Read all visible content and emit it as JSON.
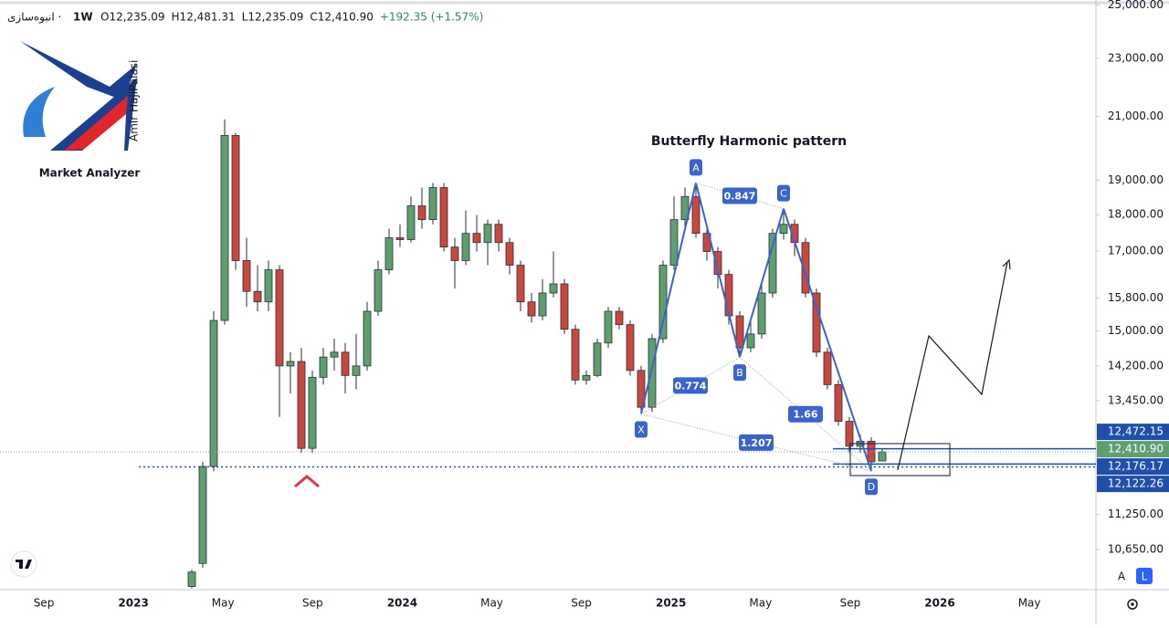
{
  "header": {
    "symbol": "انبوه‌سازی ·",
    "interval": "1W",
    "ohlc": [
      "O12,235.09",
      "H12,481.31",
      "L12,235.09",
      "C12,410.90"
    ],
    "change": "+192.35 (+1.57%)"
  },
  "logo": {
    "name": "Market Analyzer",
    "author": "Amir HajiPalasi"
  },
  "controls": [
    "A",
    "L"
  ],
  "chart_data": {
    "type": "candlestick",
    "title": "Butterfly Harmonic pattern",
    "log_scale": true,
    "grid": false,
    "ylim": [
      10000,
      25200
    ],
    "yticks": [
      {
        "value": 25000,
        "label": "25,000.00"
      },
      {
        "value": 23000,
        "label": "23,000.00"
      },
      {
        "value": 21000,
        "label": "21,000.00"
      },
      {
        "value": 19000,
        "label": "19,000.00"
      },
      {
        "value": 18000,
        "label": "18,000.00"
      },
      {
        "value": 17000,
        "label": "17,000.00"
      },
      {
        "value": 15800,
        "label": "15,800.00"
      },
      {
        "value": 15000,
        "label": "15,000.00"
      },
      {
        "value": 14200,
        "label": "14,200.00"
      },
      {
        "value": 13450,
        "label": "13,450.00"
      },
      {
        "value": 11250,
        "label": "11,250.00"
      },
      {
        "value": 10650,
        "label": "10,650.00"
      }
    ],
    "x_labels": [
      "Sep",
      "2023",
      "May",
      "Sep",
      "2024",
      "May",
      "Sep",
      "2025",
      "May",
      "Sep",
      "2026",
      "May"
    ],
    "up_color": "#5f9e6e",
    "down_color": "#c8473f",
    "open": [
      10050,
      10420,
      12130,
      15250,
      20380,
      16750,
      15960,
      15700,
      16510,
      14200,
      14300,
      12480,
      13950,
      14400,
      14510,
      13990,
      14200,
      15470,
      16510,
      17360,
      17310,
      18250,
      17860,
      18780,
      17110,
      16750,
      17480,
      17230,
      17730,
      17230,
      16630,
      15700,
      15360,
      15920,
      16150,
      15040,
      13890,
      13990,
      14720,
      15470,
      15150,
      14100,
      13310,
      14820,
      16630,
      17860,
      18520,
      17480,
      16990,
      16390,
      15360,
      14610,
      14930,
      15920,
      17480,
      17730,
      17230,
      15920,
      14510,
      13790,
      13020,
      12520,
      12620,
      12235.09
    ],
    "high": [
      10320,
      12220,
      15470,
      20900,
      20460,
      17360,
      16630,
      16750,
      16630,
      14510,
      14610,
      14100,
      14610,
      14820,
      14720,
      14930,
      15700,
      16750,
      17610,
      17730,
      18520,
      18780,
      18920,
      18920,
      17360,
      18120,
      17990,
      17860,
      17860,
      17360,
      16750,
      15920,
      16270,
      16990,
      16270,
      15150,
      14100,
      14820,
      15580,
      15580,
      15250,
      14200,
      14930,
      16750,
      18520,
      18780,
      18920,
      17730,
      17110,
      16510,
      15470,
      15250,
      16150,
      17610,
      18170,
      17860,
      17360,
      16030,
      14610,
      13890,
      13110,
      12750,
      12700,
      12481.31
    ],
    "low": [
      10020,
      10350,
      12040,
      15150,
      16510,
      15580,
      15470,
      15470,
      13110,
      13600,
      12390,
      12390,
      13790,
      14100,
      13600,
      13690,
      14100,
      15360,
      16390,
      17110,
      17230,
      17610,
      17730,
      16990,
      16030,
      16630,
      16990,
      16630,
      16990,
      16390,
      15470,
      15200,
      15250,
      15810,
      14930,
      13790,
      13790,
      13950,
      14610,
      15040,
      13990,
      13170,
      13210,
      14720,
      16510,
      17660,
      17360,
      16750,
      16030,
      15150,
      14400,
      14510,
      14820,
      15810,
      17310,
      16870,
      15810,
      14400,
      13690,
      12930,
      12390,
      12390,
      12040,
      12235.09
    ],
    "close": [
      10280,
      12130,
      15250,
      20380,
      16750,
      15960,
      15700,
      16510,
      14200,
      14300,
      12480,
      13950,
      14400,
      14510,
      13990,
      14200,
      15470,
      16510,
      17360,
      17310,
      18250,
      17860,
      18780,
      17110,
      16750,
      17480,
      17230,
      17730,
      17230,
      16630,
      15700,
      15360,
      15920,
      16150,
      15040,
      13890,
      13990,
      14720,
      15470,
      15150,
      14100,
      13310,
      14820,
      16630,
      17860,
      18520,
      17480,
      16990,
      16390,
      15360,
      14610,
      14930,
      15920,
      17480,
      17730,
      17230,
      15920,
      14510,
      13790,
      13020,
      12520,
      12620,
      12218.55,
      12410.9
    ],
    "price_labels": [
      {
        "value": 12472.15,
        "label": "12,472.15",
        "color": "#1f4fa8",
        "style": "solid"
      },
      {
        "value": 12410.9,
        "label": "12,410.90",
        "color": "#5f9e6e",
        "style": "current"
      },
      {
        "value": 12176.17,
        "label": "12,176.17",
        "color": "#1f4fa8",
        "style": "solid"
      },
      {
        "value": 12122.26,
        "label": "12,122.26",
        "color": "#1f4fa8",
        "style": "dotted"
      }
    ],
    "pattern": {
      "color": "#3b63d0",
      "points": [
        {
          "label": "X",
          "value": 13170
        },
        {
          "label": "A",
          "value": 18920
        },
        {
          "label": "B",
          "value": 14400
        },
        {
          "label": "C",
          "value": 18170
        },
        {
          "label": "D",
          "value": 12040
        }
      ],
      "ratios": [
        {
          "value": 0.847,
          "from": "A",
          "to": "C"
        },
        {
          "value": 0.774,
          "from": "X",
          "to": "B"
        },
        {
          "value": 1.66,
          "from": "B",
          "to": "D"
        },
        {
          "value": 1.207,
          "from": "X",
          "to": "D"
        }
      ]
    }
  }
}
